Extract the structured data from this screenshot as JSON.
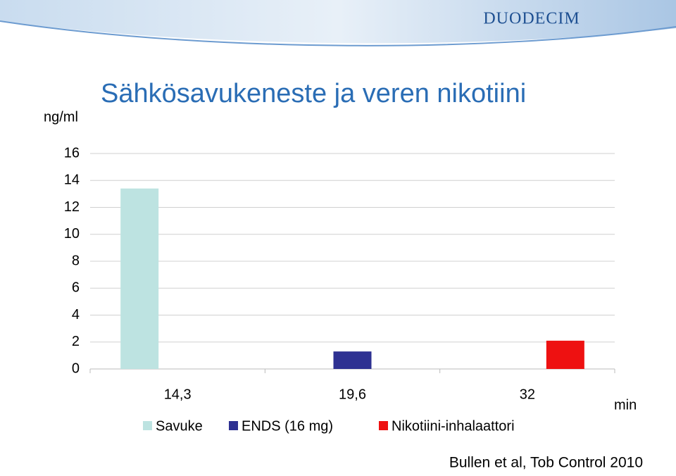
{
  "chart_data": {
    "type": "bar",
    "title": "Sähkösavukeneste ja veren nikotiini",
    "brand": "DUODECIM",
    "y_label": "ng/ml",
    "x_label": "min",
    "source": "Bullen et al, Tob Control 2010",
    "categories": [
      "14,3",
      "19,6",
      "32"
    ],
    "series": [
      {
        "name": "Savuke",
        "color": "#bde3e1",
        "values": [
          13.4,
          null,
          null
        ]
      },
      {
        "name": "ENDS (16 mg)",
        "color": "#2e3192",
        "values": [
          null,
          1.3,
          null
        ]
      },
      {
        "name": "Nikotiini-inhalaattori",
        "color": "#ee1111",
        "values": [
          null,
          null,
          2.1
        ]
      }
    ],
    "ylim": [
      0,
      16
    ],
    "yticks": [
      0,
      2,
      4,
      6,
      8,
      10,
      12,
      14,
      16
    ],
    "grid": true
  }
}
